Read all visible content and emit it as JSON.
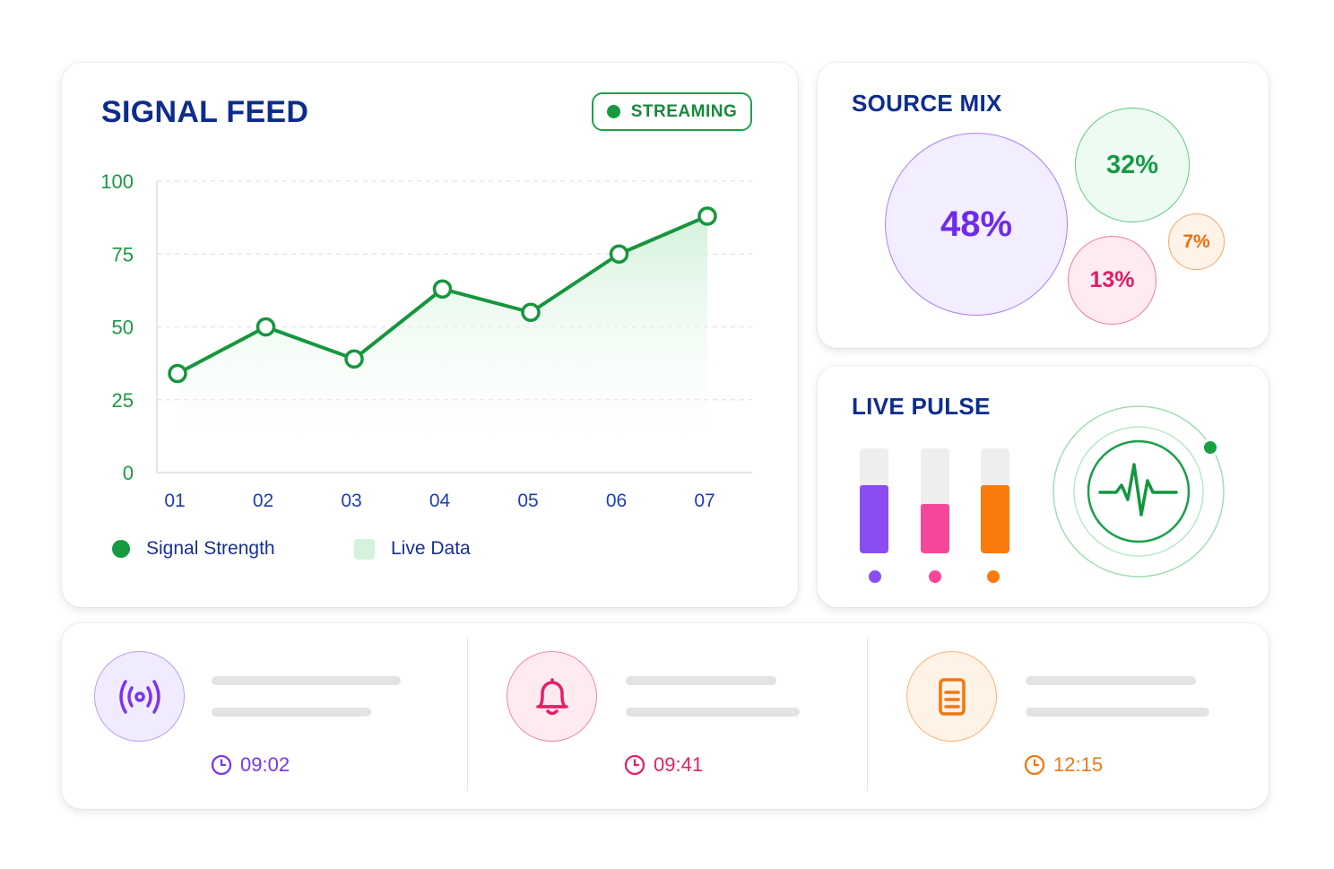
{
  "signal_feed": {
    "title": "SIGNAL FEED",
    "badge": "STREAMING",
    "legend": {
      "signal": "Signal Strength",
      "live": "Live Data"
    },
    "chart_data": {
      "type": "line",
      "categories": [
        "01",
        "02",
        "03",
        "04",
        "05",
        "06",
        "07"
      ],
      "series": [
        {
          "name": "Signal Strength",
          "values": [
            34,
            50,
            39,
            63,
            55,
            75,
            88
          ]
        }
      ],
      "y_ticks": [
        "0",
        "25",
        "50",
        "75",
        "100"
      ],
      "ylim": [
        0,
        100
      ],
      "grid": true,
      "legend_position": "bottom-left",
      "colors": {
        "line": "#17963d",
        "area": "#d9f5e1"
      }
    }
  },
  "source_mix": {
    "title": "SOURCE MIX",
    "bubbles": [
      {
        "label": "48%",
        "value": 48,
        "color": "#6e2be8"
      },
      {
        "label": "32%",
        "value": 32,
        "color": "#179a45"
      },
      {
        "label": "13%",
        "value": 13,
        "color": "#df1d62"
      },
      {
        "label": "7%",
        "value": 7,
        "color": "#ee6d0b"
      }
    ]
  },
  "live_pulse": {
    "title": "LIVE PULSE",
    "bars": [
      {
        "level": 0.65,
        "color": "#8b4df2"
      },
      {
        "level": 0.47,
        "color": "#f5479a"
      },
      {
        "level": 0.65,
        "color": "#fb7a0c"
      }
    ],
    "icon": "heartbeat-icon"
  },
  "activity": [
    {
      "icon": "broadcast-icon",
      "time": "09:02",
      "color": "#7b36e8"
    },
    {
      "icon": "bell-icon",
      "time": "09:41",
      "color": "#e42068"
    },
    {
      "icon": "document-icon",
      "time": "12:15",
      "color": "#ef7811"
    }
  ]
}
